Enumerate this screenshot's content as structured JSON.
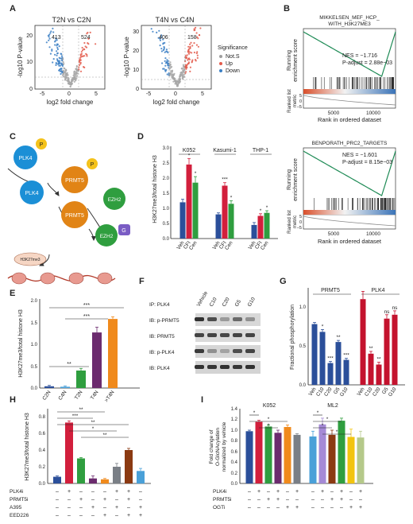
{
  "panels": {
    "A": {
      "letter": "A",
      "plots": [
        {
          "title": "T2N vs C2N",
          "count_down": "413",
          "count_up": "524",
          "xlabel": "log2 fold change",
          "ylabel": "-log10 P-value",
          "xticks": [
            "-5",
            "0",
            "5"
          ],
          "yticks": [
            "0",
            "10",
            "20"
          ]
        },
        {
          "title": "T4N vs C4N",
          "count_down": "406",
          "count_up": "158",
          "xlabel": "log2 fold change",
          "ylabel": "-log10 P-value",
          "xticks": [
            "-5",
            "0",
            "5"
          ],
          "yticks": [
            "0",
            "10",
            "20",
            "30"
          ]
        }
      ],
      "legend_title": "Significance",
      "legend": [
        {
          "label": "Not.S",
          "color": "#9e9e9e"
        },
        {
          "label": "Up",
          "color": "#e35a4b"
        },
        {
          "label": "Down",
          "color": "#3b7fc4"
        }
      ]
    },
    "B": {
      "letter": "B",
      "plots": [
        {
          "title_line1": "MIKKELSEN_MEF_HCP_",
          "title_line2": "WITH_H3K27ME3",
          "nes": "NES = −1.716",
          "padj": "P-adjust = 2.88e−03"
        },
        {
          "title_line1": "BENPORATH_PRC2_TARGETS",
          "title_line2": "",
          "nes": "NES = −1.601",
          "padj": "P-adjust = 8.15e−03"
        }
      ],
      "ylabel_es_1": "Running",
      "ylabel_es_2": "enrichment score",
      "ylabel_rl_1": "Ranked list",
      "ylabel_rl_2": "metric",
      "es_ticks": [
        "0.0",
        "−0.2",
        "−0.4",
        "−0.6"
      ],
      "rl_ticks": [
        "5",
        "0",
        "−5"
      ],
      "xticks": [
        "5000",
        "10000"
      ],
      "xlabel": "Rank in ordered dataset"
    },
    "C": {
      "letter": "C",
      "nodes": {
        "plk4_a": "PLK4",
        "p_a": "P",
        "plk4_b": "PLK4",
        "prmt5_a": "PRMT5",
        "p_b": "P",
        "ezh2_a": "EZH2",
        "prmt5_b": "PRMT5",
        "ezh2_b": "EZH2",
        "g": "G",
        "h3": "H3K27me3"
      }
    },
    "D": {
      "letter": "D",
      "ylabel": "H3K27me3/total histone H3",
      "groups": [
        "K052",
        "Kasumi-1",
        "THP-1"
      ],
      "categories": [
        "Veh",
        "CFI",
        "Cen"
      ],
      "sig": [
        [
          "",
          "*",
          "*"
        ],
        [
          "",
          "***",
          "*"
        ],
        [
          "",
          "*",
          "*"
        ]
      ],
      "yticks": [
        "0.0",
        "0.5",
        "1.0",
        "1.5",
        "2.0",
        "2.5",
        "3.0"
      ]
    },
    "E": {
      "letter": "E",
      "ylabel": "H3K27me3/total histone H3",
      "brackets": [
        "***",
        "***",
        "**"
      ],
      "yticks": [
        "0.0",
        "0.5",
        "1.0",
        "1.5",
        "2.0"
      ]
    },
    "F": {
      "letter": "F",
      "lanes": [
        "Vehicle",
        "C10",
        "C20",
        "G5",
        "G10"
      ],
      "rows": [
        "IP: PLK4",
        "IB: p-PRMT5",
        "IB: PRMT5",
        "IB: p-PLK4",
        "IB: PLK4"
      ]
    },
    "G": {
      "letter": "G",
      "ylabel": "Fractional phosphorylation",
      "groups": [
        "PRMT5",
        "PLK4"
      ],
      "yticks": [
        "0.0",
        "0.5",
        "1.0"
      ]
    },
    "H": {
      "letter": "H",
      "ylabel": "H3K27me3/total histone H3",
      "treatments": [
        "PLK4i",
        "PRMT5i",
        "A395",
        "EED226"
      ],
      "matrix": [
        [
          "–",
          "+",
          "–",
          "–",
          "–",
          "+",
          "+",
          "–"
        ],
        [
          "–",
          "–",
          "+",
          "–",
          "+",
          "–",
          "+",
          "–"
        ],
        [
          "–",
          "–",
          "–",
          "+",
          "–",
          "+",
          "–",
          "+"
        ],
        [
          "–",
          "–",
          "–",
          "–",
          "+",
          "–",
          "+",
          "+"
        ]
      ],
      "brackets": [
        "**",
        "***",
        "**",
        "*",
        "**"
      ],
      "yticks": [
        "0.0",
        "0.2",
        "0.4",
        "0.6",
        "0.8"
      ]
    },
    "I": {
      "letter": "I",
      "ylabel": "Fold change of O-GlcNAcylation normalized by vehicle",
      "ylabel_1": "Fold change of",
      "ylabel_2": "O-GlcNAcylation",
      "ylabel_3": "normalized by vehicle",
      "groups": [
        "K052",
        "ML2"
      ],
      "treatments": [
        "PLK4i",
        "PRMT5i",
        "OGTi"
      ],
      "matrix": [
        [
          "–",
          "+",
          "–",
          "+",
          "–",
          "+",
          "–",
          "+",
          "–",
          "+",
          "–",
          "+"
        ],
        [
          "–",
          "–",
          "+",
          "+",
          "–",
          "–",
          "–",
          "–",
          "+",
          "+",
          "–",
          "–"
        ],
        [
          "–",
          "–",
          "–",
          "–",
          "+",
          "+",
          "–",
          "–",
          "–",
          "–",
          "+",
          "+"
        ]
      ],
      "yticks": [
        "0.0",
        "0.2",
        "0.4",
        "0.6",
        "0.8",
        "1.0",
        "1.2",
        "1.4"
      ]
    }
  },
  "chart_data": [
    {
      "panel": "D",
      "type": "bar",
      "title": "",
      "ylabel": "H3K27me3/total histone H3",
      "ylim": [
        0,
        3.0
      ],
      "categories": [
        "K052 Veh",
        "K052 CFI",
        "K052 Cen",
        "Kasumi-1 Veh",
        "Kasumi-1 CFI",
        "Kasumi-1 Cen",
        "THP-1 Veh",
        "THP-1 CFI",
        "THP-1 Cen"
      ],
      "values": [
        1.2,
        2.45,
        1.85,
        0.8,
        1.75,
        1.15,
        0.45,
        0.75,
        0.85
      ],
      "errors": [
        0.1,
        0.2,
        0.2,
        0.05,
        0.1,
        0.1,
        0.08,
        0.07,
        0.07
      ],
      "colors": [
        "#2b4f9a",
        "#d21f3c",
        "#2f9e3f",
        "#2b4f9a",
        "#d21f3c",
        "#2f9e3f",
        "#2b4f9a",
        "#d21f3c",
        "#2f9e3f"
      ]
    },
    {
      "panel": "E",
      "type": "bar",
      "title": "",
      "ylabel": "H3K27me3/total histone H3",
      "ylim": [
        0,
        2.0
      ],
      "categories": [
        "C2N",
        "C4N",
        "T2N",
        "T4N",
        ">T4N"
      ],
      "values": [
        0.04,
        0.03,
        0.4,
        1.27,
        1.58
      ],
      "errors": [
        0.02,
        0.02,
        0.05,
        0.12,
        0.05
      ],
      "colors": [
        "#2b4f9a",
        "#4aa0d8",
        "#2f9e3f",
        "#6b2b6e",
        "#f08a1c"
      ]
    },
    {
      "panel": "G",
      "type": "bar",
      "title": "",
      "ylabel": "Fractional phosphorylation",
      "ylim": [
        0,
        1.2
      ],
      "categories": [
        "Veh",
        "C10",
        "C20",
        "G5",
        "G10",
        "Veh",
        "C10",
        "C20",
        "G5",
        "G10"
      ],
      "values": [
        0.78,
        0.68,
        0.28,
        0.55,
        0.32,
        1.1,
        0.4,
        0.26,
        0.85,
        0.9
      ],
      "errors": [
        0.02,
        0.03,
        0.02,
        0.02,
        0.02,
        0.1,
        0.03,
        0.03,
        0.05,
        0.05
      ],
      "sig": [
        "",
        "*",
        "***",
        "**",
        "***",
        "",
        "**",
        "**",
        "ns",
        "ns"
      ],
      "colors": [
        "#2b4f9a",
        "#2b4f9a",
        "#2b4f9a",
        "#2b4f9a",
        "#2b4f9a",
        "#c4132e",
        "#c4132e",
        "#c4132e",
        "#c4132e",
        "#c4132e"
      ]
    },
    {
      "panel": "H",
      "type": "bar",
      "title": "",
      "ylabel": "H3K27me3/total histone H3",
      "ylim": [
        0,
        0.9
      ],
      "categories": [
        "1",
        "2",
        "3",
        "4",
        "5",
        "6",
        "7",
        "8"
      ],
      "values": [
        0.08,
        0.73,
        0.3,
        0.06,
        0.05,
        0.2,
        0.4,
        0.15
      ],
      "errors": [
        0.01,
        0.02,
        0.01,
        0.03,
        0.01,
        0.04,
        0.02,
        0.03
      ],
      "colors": [
        "#2b4f9a",
        "#d21f3c",
        "#2f9e3f",
        "#6b2b6e",
        "#f08a1c",
        "#7a7f86",
        "#8b3a12",
        "#4aa0d8"
      ]
    },
    {
      "panel": "I",
      "type": "bar",
      "title": "",
      "ylabel": "Fold change of O-GlcNAcylation normalized by vehicle",
      "ylim": [
        0,
        1.4
      ],
      "categories": [
        "K052 1",
        "K052 2",
        "K052 3",
        "K052 4",
        "K052 5",
        "K052 6",
        "ML2 1",
        "ML2 2",
        "ML2 3",
        "ML2 4",
        "ML2 5",
        "ML2 6"
      ],
      "values": [
        1.0,
        1.18,
        1.09,
        0.97,
        1.08,
        0.93,
        0.9,
        1.13,
        0.93,
        1.2,
        0.89,
        0.88
      ],
      "errors": [
        0.02,
        0.03,
        0.03,
        0.05,
        0.04,
        0.02,
        0.1,
        0.12,
        0.09,
        0.05,
        0.15,
        0.12
      ],
      "colors": [
        "#2b4f9a",
        "#d21f3c",
        "#2f9e3f",
        "#6b2b6e",
        "#f08a1c",
        "#7a7f86",
        "#4aa0d8",
        "#a58ad6",
        "#8b3a12",
        "#2f9e3f",
        "#f2c40f",
        "#b5c98a"
      ]
    }
  ]
}
